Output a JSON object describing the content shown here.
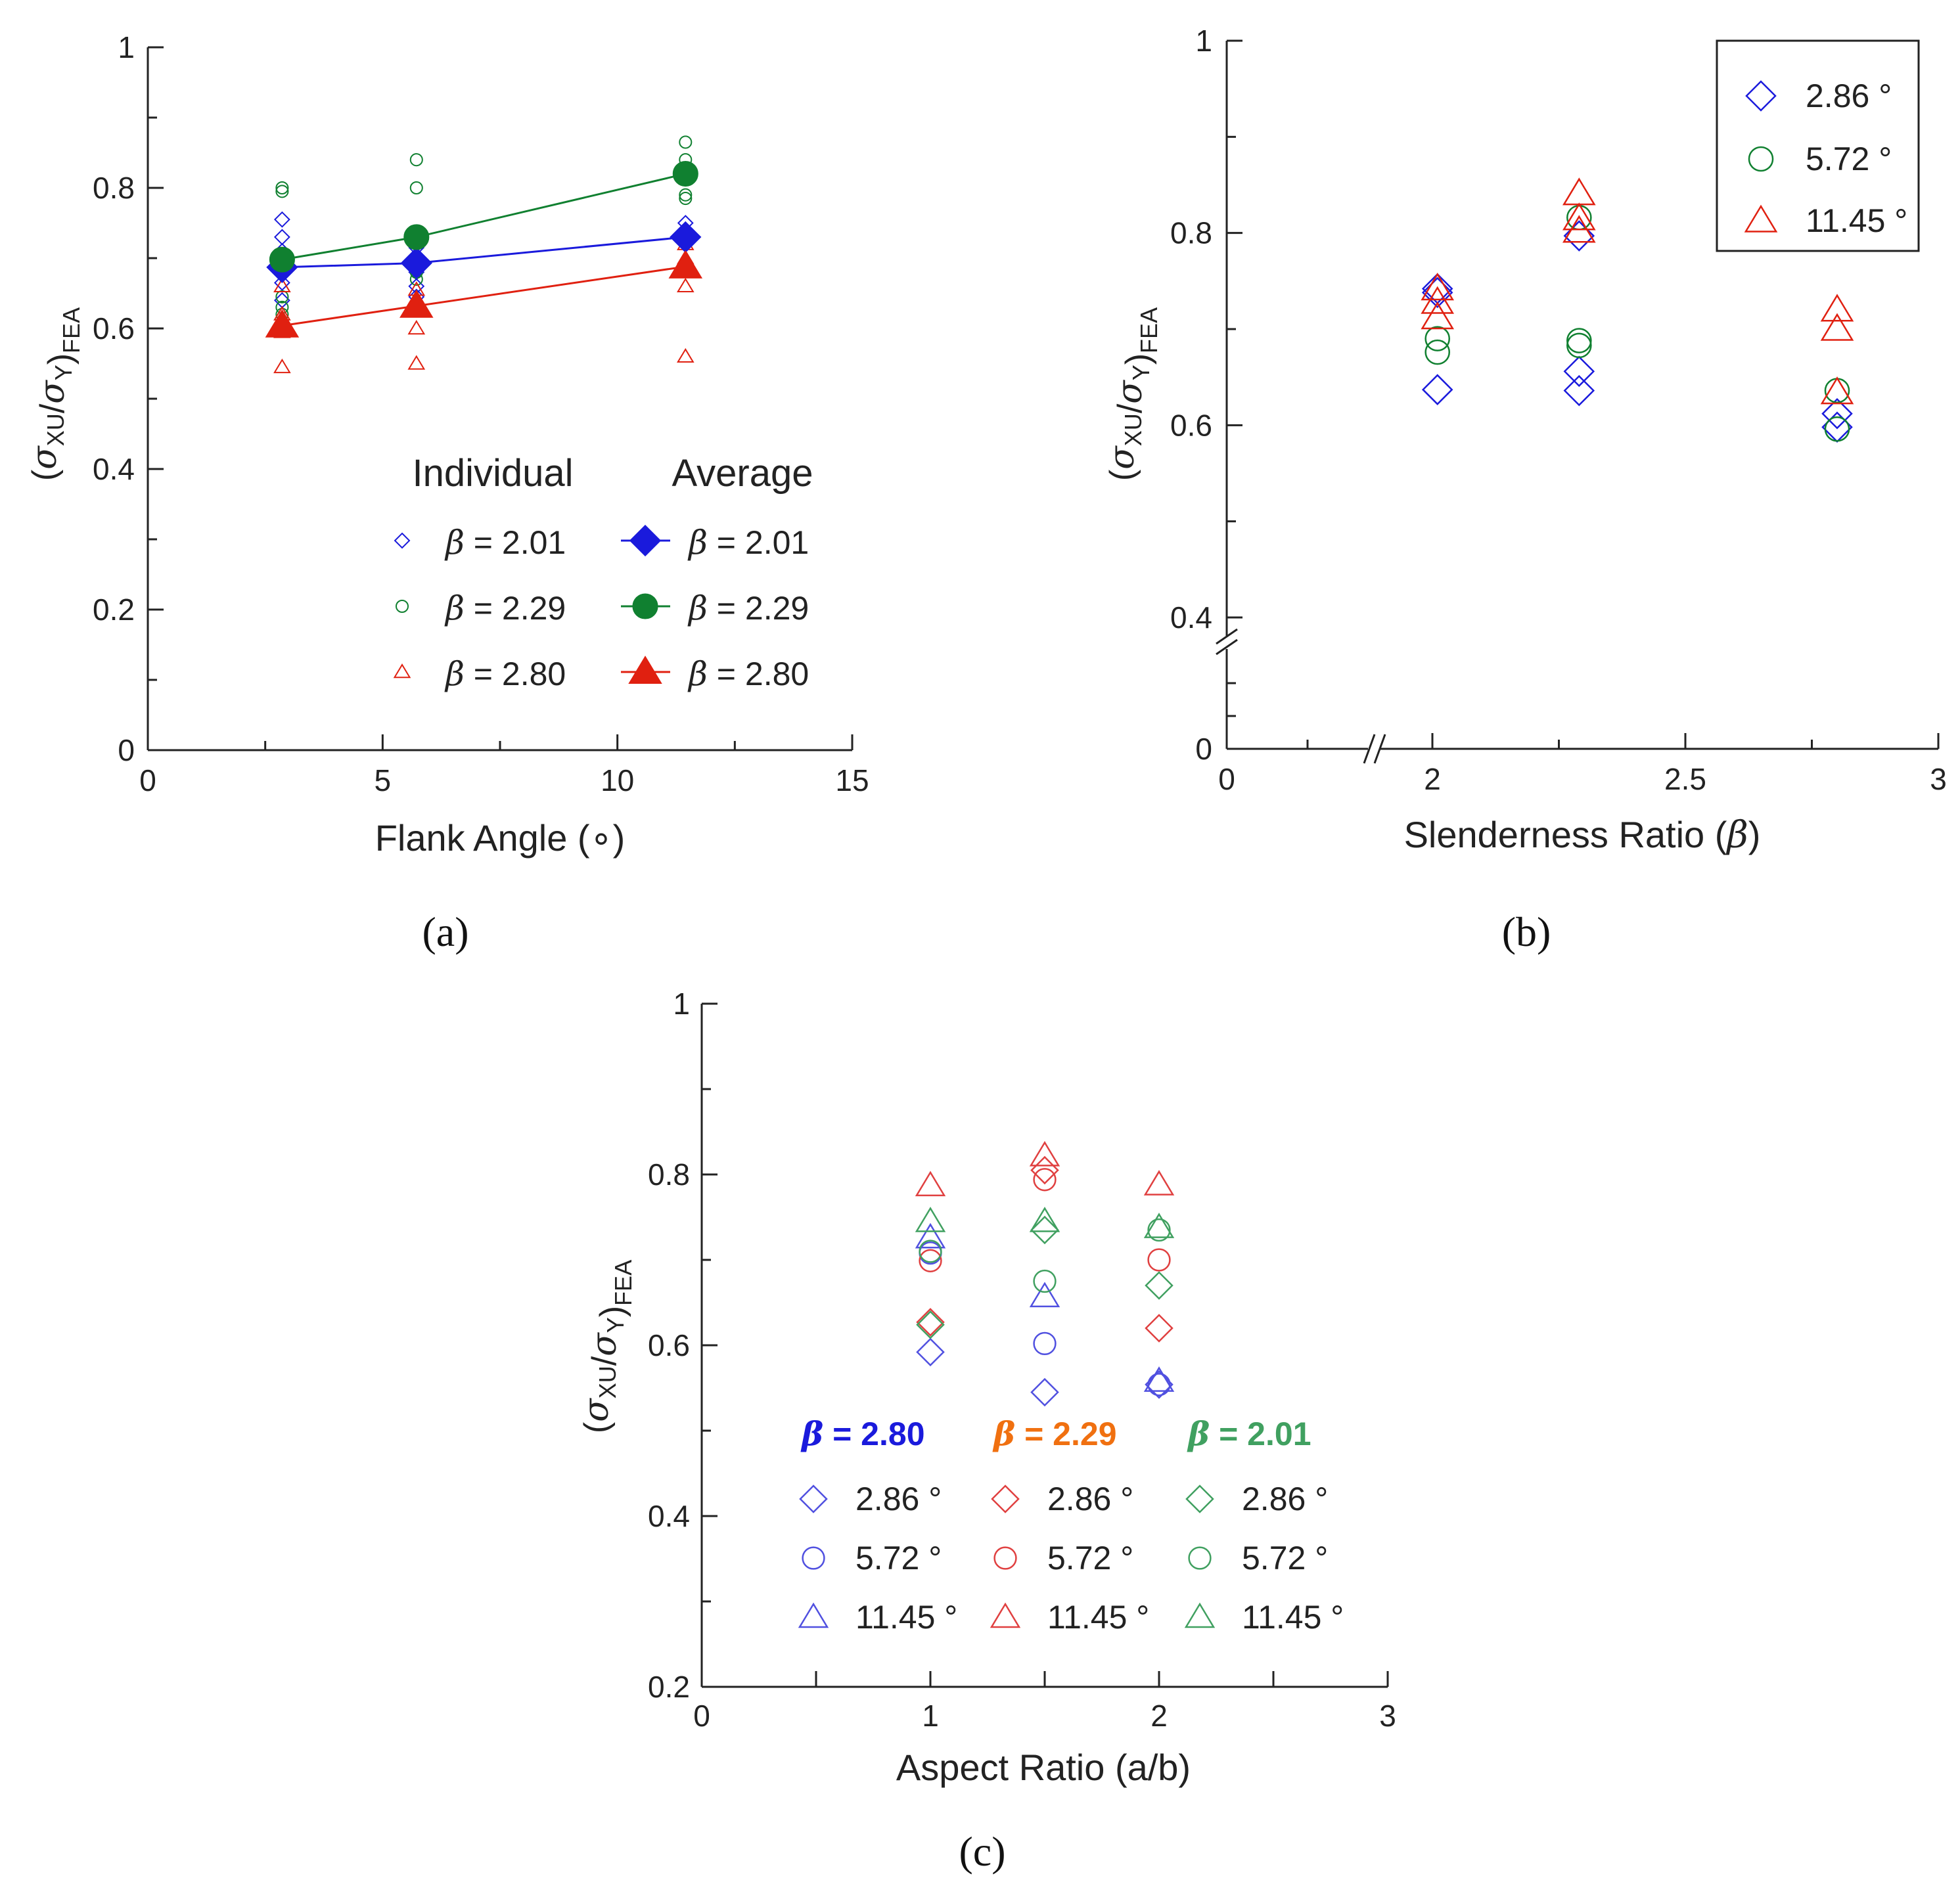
{
  "colors": {
    "blue": "#1a1adc",
    "green": "#108030",
    "red": "#e02010",
    "lightBlue": "#5050e0",
    "lightGreen": "#40a060",
    "lightRed": "#e04040",
    "orange": "#f07010",
    "axis": "#222222"
  },
  "chart_data": [
    {
      "id": "a",
      "panel_label": "(a)",
      "type": "scatter",
      "xlabel": "Flank Angle (∘)",
      "ylabel": "(σXU/σY)FEA",
      "xlim": [
        0,
        15
      ],
      "ylim": [
        0,
        1
      ],
      "xticks": [
        "0",
        "5",
        "10",
        "15"
      ],
      "yticks": [
        "0",
        "0.2",
        "0.4",
        "0.6",
        "0.8",
        "1"
      ],
      "legend": {
        "individual_title": "Individual",
        "average_title": "Average",
        "entries": [
          {
            "symbol": "β",
            "label": "= 2.01"
          },
          {
            "symbol": "β",
            "label": "= 2.29"
          },
          {
            "symbol": "β",
            "label": "= 2.80"
          }
        ]
      },
      "individual": [
        {
          "name": "β = 2.01",
          "marker": "diamond",
          "color": "blue",
          "points": [
            [
              2.86,
              0.755
            ],
            [
              2.86,
              0.73
            ],
            [
              2.86,
              0.71
            ],
            [
              2.86,
              0.69
            ],
            [
              2.86,
              0.665
            ],
            [
              2.86,
              0.64
            ],
            [
              5.72,
              0.715
            ],
            [
              5.72,
              0.7
            ],
            [
              5.72,
              0.68
            ],
            [
              5.72,
              0.66
            ],
            [
              5.72,
              0.645
            ],
            [
              11.45,
              0.75
            ],
            [
              11.45,
              0.74
            ],
            [
              11.45,
              0.73
            ],
            [
              11.45,
              0.72
            ]
          ]
        },
        {
          "name": "β = 2.29",
          "marker": "circle",
          "color": "green",
          "points": [
            [
              2.86,
              0.8
            ],
            [
              2.86,
              0.795
            ],
            [
              2.86,
              0.7
            ],
            [
              2.86,
              0.645
            ],
            [
              2.86,
              0.63
            ],
            [
              2.86,
              0.62
            ],
            [
              5.72,
              0.84
            ],
            [
              5.72,
              0.8
            ],
            [
              5.72,
              0.73
            ],
            [
              5.72,
              0.72
            ],
            [
              5.72,
              0.68
            ],
            [
              5.72,
              0.67
            ],
            [
              11.45,
              0.865
            ],
            [
              11.45,
              0.84
            ],
            [
              11.45,
              0.79
            ],
            [
              11.45,
              0.785
            ],
            [
              11.45,
              0.825
            ]
          ]
        },
        {
          "name": "β = 2.80",
          "marker": "triangle",
          "color": "red",
          "points": [
            [
              2.86,
              0.66
            ],
            [
              2.86,
              0.62
            ],
            [
              2.86,
              0.595
            ],
            [
              2.86,
              0.545
            ],
            [
              5.72,
              0.655
            ],
            [
              5.72,
              0.64
            ],
            [
              5.72,
              0.6
            ],
            [
              5.72,
              0.55
            ],
            [
              11.45,
              0.72
            ],
            [
              11.45,
              0.7
            ],
            [
              11.45,
              0.66
            ],
            [
              11.45,
              0.56
            ]
          ]
        }
      ],
      "average": [
        {
          "name": "β = 2.01",
          "marker": "diamond",
          "color": "blue",
          "x": [
            2.86,
            5.72,
            11.45
          ],
          "y": [
            0.687,
            0.693,
            0.73
          ]
        },
        {
          "name": "β = 2.29",
          "marker": "circle",
          "color": "green",
          "x": [
            2.86,
            5.72,
            11.45
          ],
          "y": [
            0.698,
            0.73,
            0.82
          ]
        },
        {
          "name": "β = 2.80",
          "marker": "triangle",
          "color": "red",
          "x": [
            2.86,
            5.72,
            11.45
          ],
          "y": [
            0.604,
            0.632,
            0.688
          ]
        }
      ]
    },
    {
      "id": "b",
      "panel_label": "(b)",
      "type": "scatter",
      "xlabel": "Slenderness Ratio (β)",
      "ylabel": "(σXU/σY)FEA",
      "xlim": [
        0,
        3
      ],
      "ylim": [
        0,
        1
      ],
      "axis_break": true,
      "xticks": [
        "0",
        "2",
        "2.5",
        "3"
      ],
      "yticks": [
        "0",
        "0.4",
        "0.6",
        "0.8",
        "1"
      ],
      "legend": [
        {
          "label": "2.86 °",
          "marker": "diamond",
          "color": "blue"
        },
        {
          "label": "5.72 °",
          "marker": "circle",
          "color": "green"
        },
        {
          "label": "11.45 °",
          "marker": "triangle",
          "color": "red"
        }
      ],
      "series": [
        {
          "name": "2.86 °",
          "marker": "diamond",
          "color": "blue",
          "points": [
            [
              2.01,
              0.742
            ],
            [
              2.01,
              0.738
            ],
            [
              2.01,
              0.637
            ],
            [
              2.29,
              0.797
            ],
            [
              2.29,
              0.656
            ],
            [
              2.29,
              0.636
            ],
            [
              2.8,
              0.612
            ],
            [
              2.8,
              0.598
            ]
          ]
        },
        {
          "name": "5.72 °",
          "marker": "circle",
          "color": "green",
          "points": [
            [
              2.01,
              0.69
            ],
            [
              2.01,
              0.676
            ],
            [
              2.29,
              0.816
            ],
            [
              2.29,
              0.688
            ],
            [
              2.29,
              0.683
            ],
            [
              2.8,
              0.636
            ],
            [
              2.8,
              0.596
            ]
          ]
        },
        {
          "name": "11.45 °",
          "marker": "triangle",
          "color": "red",
          "points": [
            [
              2.01,
              0.742
            ],
            [
              2.01,
              0.728
            ],
            [
              2.01,
              0.712
            ],
            [
              2.29,
              0.841
            ],
            [
              2.29,
              0.815
            ],
            [
              2.29,
              0.802
            ],
            [
              2.8,
              0.72
            ],
            [
              2.8,
              0.7
            ],
            [
              2.8,
              0.634
            ]
          ]
        }
      ]
    },
    {
      "id": "c",
      "panel_label": "(c)",
      "type": "scatter",
      "xlabel": "Aspect Ratio (a/b)",
      "ylabel": "(σXU/σY)FEA",
      "xlim": [
        0,
        3
      ],
      "ylim": [
        0.2,
        1
      ],
      "xticks": [
        "0",
        "1",
        "2",
        "3"
      ],
      "yticks": [
        "0.2",
        "0.4",
        "0.6",
        "0.8",
        "1"
      ],
      "legend": {
        "groups": [
          {
            "title_symbol": "β",
            "title": "= 2.80",
            "color": "blue"
          },
          {
            "title_symbol": "β",
            "title": "= 2.29",
            "color": "orange"
          },
          {
            "title_symbol": "β",
            "title": "= 2.01",
            "color": "lightGreen"
          }
        ],
        "rows": [
          {
            "label": "2.86 °",
            "marker": "diamond"
          },
          {
            "label": "5.72 °",
            "marker": "circle"
          },
          {
            "label": "11.45 °",
            "marker": "triangle"
          }
        ]
      },
      "series": [
        {
          "name": "β = 2.80, 2.86 °",
          "marker": "diamond",
          "color": "lightBlue",
          "points": [
            [
              1,
              0.592
            ],
            [
              1.5,
              0.545
            ],
            [
              2,
              0.554
            ]
          ]
        },
        {
          "name": "β = 2.80, 5.72 °",
          "marker": "circle",
          "color": "lightBlue",
          "points": [
            [
              1,
              0.708
            ],
            [
              1.5,
              0.602
            ],
            [
              2,
              0.554
            ]
          ]
        },
        {
          "name": "β = 2.80, 11.45 °",
          "marker": "triangle",
          "color": "lightBlue",
          "points": [
            [
              1,
              0.726
            ],
            [
              1.5,
              0.657
            ],
            [
              2,
              0.558
            ]
          ]
        },
        {
          "name": "β = 2.29, 2.86 °",
          "marker": "diamond",
          "color": "lightRed",
          "points": [
            [
              1,
              0.627
            ],
            [
              1.5,
              0.805
            ],
            [
              2,
              0.62
            ]
          ]
        },
        {
          "name": "β = 2.29, 5.72 °",
          "marker": "circle",
          "color": "lightRed",
          "points": [
            [
              1,
              0.699
            ],
            [
              1.5,
              0.794
            ],
            [
              2,
              0.7
            ]
          ]
        },
        {
          "name": "β = 2.29, 11.45 °",
          "marker": "triangle",
          "color": "lightRed",
          "points": [
            [
              1,
              0.787
            ],
            [
              1.5,
              0.822
            ],
            [
              2,
              0.788
            ]
          ]
        },
        {
          "name": "β = 2.01, 2.86 °",
          "marker": "diamond",
          "color": "lightGreen",
          "points": [
            [
              1,
              0.624
            ],
            [
              1.5,
              0.735
            ],
            [
              2,
              0.67
            ]
          ]
        },
        {
          "name": "β = 2.01, 5.72 °",
          "marker": "circle",
          "color": "lightGreen",
          "points": [
            [
              1,
              0.71
            ],
            [
              1.5,
              0.675
            ],
            [
              2,
              0.735
            ]
          ]
        },
        {
          "name": "β = 2.01, 11.45 °",
          "marker": "triangle",
          "color": "lightGreen",
          "points": [
            [
              1,
              0.745
            ],
            [
              1.5,
              0.745
            ],
            [
              2,
              0.738
            ]
          ]
        }
      ]
    }
  ]
}
